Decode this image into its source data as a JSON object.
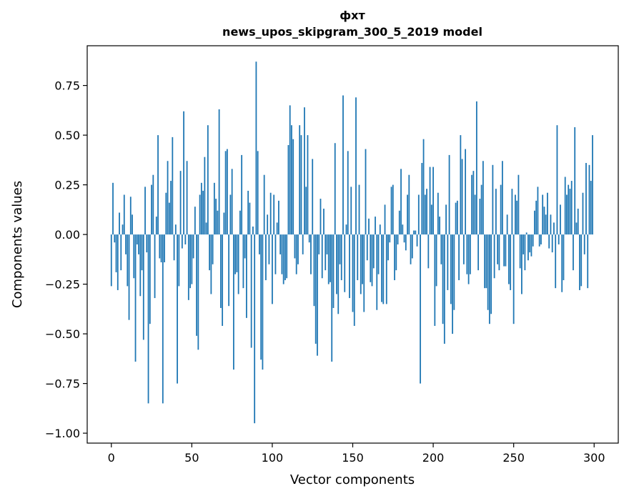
{
  "chart_data": {
    "type": "bar",
    "title": "фхт",
    "subtitle": "news_upos_skipgram_300_5_2019 model",
    "xlabel": "Vector components",
    "ylabel": "Components values",
    "xlim": [
      -15,
      315
    ],
    "ylim": [
      -1.05,
      0.95
    ],
    "xticks": [
      0,
      50,
      100,
      150,
      200,
      250,
      300
    ],
    "xtick_labels": [
      "0",
      "50",
      "100",
      "150",
      "200",
      "250",
      "300"
    ],
    "yticks": [
      -1.0,
      -0.75,
      -0.5,
      -0.25,
      0.0,
      0.25,
      0.5,
      0.75
    ],
    "ytick_labels": [
      "−1.00",
      "−0.75",
      "−0.50",
      "−0.25",
      "0.00",
      "0.25",
      "0.50",
      "0.75"
    ],
    "grid": false,
    "bar_color": "#1f77b4",
    "values": [
      -0.26,
      0.26,
      -0.04,
      -0.19,
      -0.28,
      0.11,
      -0.18,
      0.05,
      0.2,
      -0.1,
      -0.26,
      -0.43,
      0.19,
      0.1,
      -0.22,
      -0.64,
      -0.05,
      -0.1,
      -0.31,
      -0.18,
      -0.53,
      0.24,
      -0.09,
      -0.85,
      -0.45,
      0.25,
      0.3,
      -0.32,
      0.09,
      0.5,
      -0.12,
      -0.14,
      -0.85,
      -0.14,
      0.21,
      0.37,
      0.16,
      0.27,
      0.49,
      -0.13,
      0.05,
      -0.75,
      -0.26,
      0.32,
      -0.07,
      0.62,
      -0.05,
      0.37,
      -0.33,
      -0.27,
      -0.25,
      -0.12,
      0.14,
      -0.51,
      -0.58,
      0.2,
      0.26,
      0.22,
      0.39,
      0.06,
      0.55,
      -0.18,
      -0.3,
      -0.15,
      0.26,
      0.18,
      0.12,
      0.63,
      -0.37,
      -0.46,
      0.11,
      0.42,
      0.43,
      -0.36,
      0.2,
      0.33,
      -0.68,
      -0.2,
      -0.19,
      -0.3,
      0.12,
      0.4,
      -0.27,
      -0.12,
      -0.42,
      0.22,
      0.16,
      -0.57,
      0.04,
      -0.95,
      0.87,
      0.42,
      -0.1,
      -0.63,
      -0.68,
      0.3,
      -0.23,
      0.1,
      -0.15,
      0.21,
      -0.35,
      0.2,
      -0.2,
      0.06,
      0.17,
      -0.1,
      -0.2,
      -0.25,
      -0.23,
      -0.22,
      0.45,
      0.65,
      0.55,
      0.48,
      -0.12,
      -0.2,
      -0.15,
      0.55,
      0.5,
      -0.1,
      0.64,
      0.24,
      0.5,
      -0.04,
      -0.2,
      0.38,
      -0.36,
      -0.55,
      -0.61,
      -0.1,
      0.18,
      -0.22,
      0.13,
      -0.18,
      -0.1,
      -0.25,
      -0.24,
      -0.64,
      -0.37,
      0.46,
      -0.3,
      -0.4,
      -0.15,
      -0.23,
      0.7,
      -0.29,
      0.05,
      0.42,
      -0.32,
      0.24,
      -0.39,
      -0.46,
      0.69,
      -0.23,
      0.25,
      -0.3,
      -0.25,
      -0.39,
      0.43,
      -0.13,
      0.08,
      -0.24,
      -0.26,
      -0.17,
      0.09,
      -0.38,
      -0.2,
      0.05,
      -0.34,
      -0.35,
      0.15,
      -0.35,
      -0.13,
      -0.04,
      0.24,
      0.25,
      -0.23,
      -0.18,
      -0.05,
      0.12,
      0.33,
      0.05,
      -0.04,
      -0.08,
      0.2,
      0.3,
      -0.15,
      -0.12,
      0.02,
      0.02,
      -0.06,
      0.2,
      -0.75,
      0.36,
      0.48,
      0.2,
      0.23,
      -0.17,
      0.34,
      0.15,
      0.34,
      -0.46,
      -0.26,
      0.21,
      0.09,
      -0.15,
      -0.45,
      -0.55,
      0.15,
      -0.28,
      0.4,
      -0.35,
      -0.5,
      -0.38,
      0.16,
      0.17,
      -0.23,
      0.5,
      0.38,
      -0.15,
      0.43,
      -0.2,
      -0.25,
      -0.2,
      0.3,
      0.32,
      0.2,
      0.67,
      -0.18,
      0.18,
      0.25,
      0.37,
      -0.27,
      -0.27,
      -0.38,
      -0.45,
      -0.4,
      0.35,
      -0.22,
      0.23,
      -0.15,
      -0.18,
      0.25,
      0.37,
      -0.16,
      -0.16,
      0.1,
      -0.25,
      -0.28,
      0.23,
      -0.45,
      0.2,
      0.17,
      0.3,
      -0.17,
      -0.3,
      -0.1,
      -0.18,
      0.01,
      -0.13,
      -0.09,
      -0.11,
      -0.06,
      0.12,
      0.17,
      0.24,
      -0.06,
      -0.05,
      0.2,
      0.14,
      0.1,
      0.21,
      -0.07,
      0.1,
      -0.09,
      0.06,
      -0.27,
      0.55,
      -0.05,
      0.15,
      -0.29,
      -0.23,
      0.29,
      0.2,
      0.25,
      0.23,
      0.27,
      -0.18,
      0.54,
      0.06,
      0.13,
      -0.28,
      -0.26,
      0.21,
      -0.1,
      0.36,
      -0.27,
      0.35,
      0.27,
      0.5
    ]
  }
}
